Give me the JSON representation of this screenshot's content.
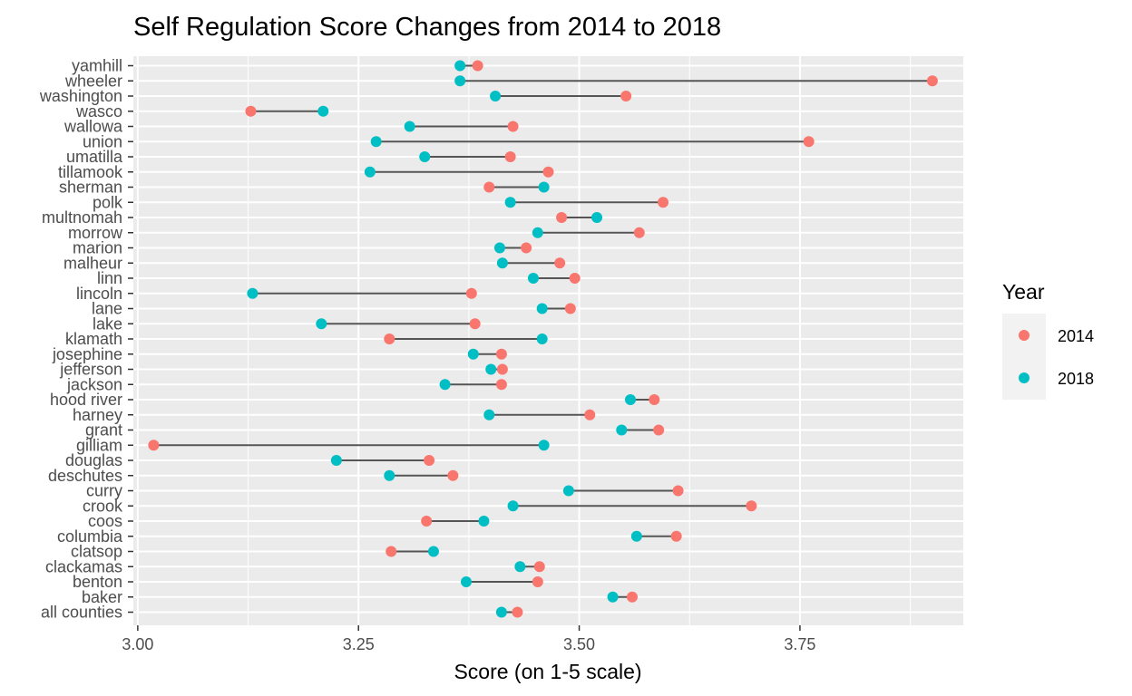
{
  "chart_data": {
    "type": "dumbbell",
    "title": "Self Regulation Score Changes from 2014 to 2018",
    "xlabel": "Score (on 1-5 scale)",
    "ylabel": "",
    "xlim": [
      2.995,
      3.935
    ],
    "xticks": [
      3.0,
      3.25,
      3.5,
      3.75
    ],
    "xtick_labels": [
      "3.00",
      "3.25",
      "3.50",
      "3.75"
    ],
    "grid": true,
    "legend": {
      "title": "Year",
      "position": "right",
      "entries": [
        {
          "label": "2014",
          "color": "#F8766D"
        },
        {
          "label": "2018",
          "color": "#00BFC4"
        }
      ]
    },
    "colors": {
      "2014": "#F8766D",
      "2018": "#00BFC4",
      "segment": "#555555",
      "panel": "#EBEBEB",
      "grid": "#FFFFFF"
    },
    "series": [
      {
        "name": "2014"
      },
      {
        "name": "2018"
      }
    ],
    "rows": [
      {
        "county": "yamhill",
        "y2014": 3.385,
        "y2018": 3.365
      },
      {
        "county": "wheeler",
        "y2014": 3.9,
        "y2018": 3.365
      },
      {
        "county": "washington",
        "y2014": 3.553,
        "y2018": 3.405
      },
      {
        "county": "wasco",
        "y2014": 3.128,
        "y2018": 3.21
      },
      {
        "county": "wallowa",
        "y2014": 3.425,
        "y2018": 3.308
      },
      {
        "county": "union",
        "y2014": 3.76,
        "y2018": 3.27
      },
      {
        "county": "umatilla",
        "y2014": 3.422,
        "y2018": 3.325
      },
      {
        "county": "tillamook",
        "y2014": 3.465,
        "y2018": 3.263
      },
      {
        "county": "sherman",
        "y2014": 3.398,
        "y2018": 3.46
      },
      {
        "county": "polk",
        "y2014": 3.595,
        "y2018": 3.422
      },
      {
        "county": "multnomah",
        "y2014": 3.48,
        "y2018": 3.52
      },
      {
        "county": "morrow",
        "y2014": 3.568,
        "y2018": 3.453
      },
      {
        "county": "marion",
        "y2014": 3.44,
        "y2018": 3.41
      },
      {
        "county": "malheur",
        "y2014": 3.478,
        "y2018": 3.413
      },
      {
        "county": "linn",
        "y2014": 3.495,
        "y2018": 3.448
      },
      {
        "county": "lincoln",
        "y2014": 3.378,
        "y2018": 3.13
      },
      {
        "county": "lane",
        "y2014": 3.49,
        "y2018": 3.458
      },
      {
        "county": "lake",
        "y2014": 3.382,
        "y2018": 3.208
      },
      {
        "county": "klamath",
        "y2014": 3.285,
        "y2018": 3.458
      },
      {
        "county": "josephine",
        "y2014": 3.412,
        "y2018": 3.38
      },
      {
        "county": "jefferson",
        "y2014": 3.413,
        "y2018": 3.4
      },
      {
        "county": "jackson",
        "y2014": 3.412,
        "y2018": 3.348
      },
      {
        "county": "hood river",
        "y2014": 3.585,
        "y2018": 3.558
      },
      {
        "county": "harney",
        "y2014": 3.512,
        "y2018": 3.398
      },
      {
        "county": "grant",
        "y2014": 3.59,
        "y2018": 3.548
      },
      {
        "county": "gilliam",
        "y2014": 3.018,
        "y2018": 3.46
      },
      {
        "county": "douglas",
        "y2014": 3.33,
        "y2018": 3.225
      },
      {
        "county": "deschutes",
        "y2014": 3.357,
        "y2018": 3.285
      },
      {
        "county": "curry",
        "y2014": 3.612,
        "y2018": 3.488
      },
      {
        "county": "crook",
        "y2014": 3.695,
        "y2018": 3.425
      },
      {
        "county": "coos",
        "y2014": 3.327,
        "y2018": 3.392
      },
      {
        "county": "columbia",
        "y2014": 3.61,
        "y2018": 3.565
      },
      {
        "county": "clatsop",
        "y2014": 3.287,
        "y2018": 3.335
      },
      {
        "county": "clackamas",
        "y2014": 3.455,
        "y2018": 3.433
      },
      {
        "county": "benton",
        "y2014": 3.453,
        "y2018": 3.372
      },
      {
        "county": "baker",
        "y2014": 3.56,
        "y2018": 3.538
      },
      {
        "county": "all counties",
        "y2014": 3.43,
        "y2018": 3.412
      }
    ]
  }
}
